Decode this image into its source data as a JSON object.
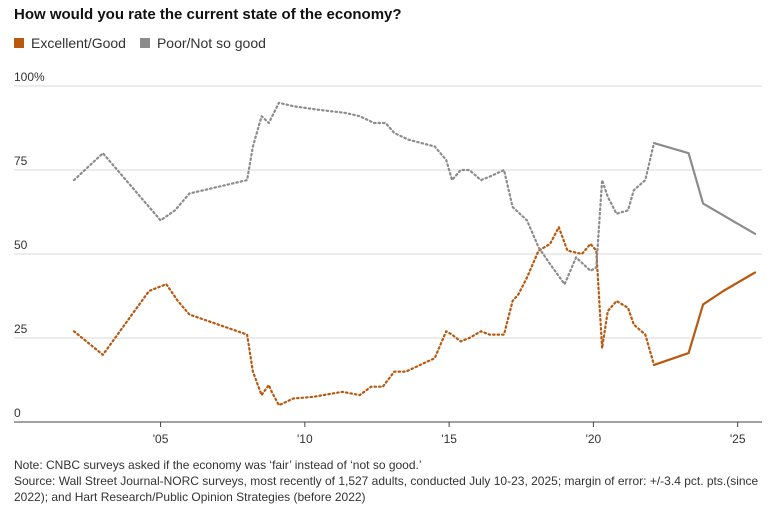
{
  "chart_data": {
    "type": "line",
    "title": "How would you rate the current state of the economy?",
    "xlabel": "",
    "ylabel": "",
    "x_tick_labels": [
      "'05",
      "'10",
      "'15",
      "'20",
      "'25"
    ],
    "x_tick_values": [
      2005,
      2010,
      2015,
      2020,
      2025
    ],
    "y_tick_labels": [
      "100%",
      "75",
      "50",
      "25",
      "0"
    ],
    "y_tick_values": [
      100,
      75,
      50,
      25,
      0
    ],
    "xlim": [
      2001.3,
      2025.8
    ],
    "ylim": [
      0,
      100
    ],
    "legend_position": "top-left",
    "note_line_styles": "dotted = Hart Research/Public Opinion Strategies (before 2022); solid = Wall Street Journal-NORC (since 2022)",
    "series": [
      {
        "name": "Excellent/Good",
        "color": "#b8590f",
        "dotted": {
          "x": [
            2002.0,
            2003.0,
            2004.6,
            2005.2,
            2005.6,
            2006.0,
            2008.0,
            2008.2,
            2008.5,
            2008.75,
            2008.85,
            2009.1,
            2009.6,
            2010.3,
            2011.3,
            2011.9,
            2012.3,
            2012.7,
            2013.1,
            2013.5,
            2014.5,
            2014.9,
            2015.1,
            2015.4,
            2015.7,
            2016.1,
            2016.4,
            2016.9,
            2017.2,
            2017.4,
            2017.7,
            2018.1,
            2018.5,
            2018.8,
            2019.1,
            2019.6,
            2019.9,
            2020.1,
            2020.3,
            2020.5,
            2020.8,
            2021.2,
            2021.4,
            2021.8,
            2022.1
          ],
          "y": [
            27,
            20,
            39,
            41,
            36,
            32,
            26,
            15,
            8,
            11,
            9,
            5,
            7,
            7.5,
            9,
            8,
            10.5,
            10.5,
            15,
            15,
            19,
            27,
            26,
            24,
            25,
            27,
            26,
            26,
            36,
            38,
            43,
            51,
            53,
            58,
            51,
            50,
            53,
            51,
            22,
            33,
            36,
            34,
            29,
            26,
            17
          ]
        },
        "solid": {
          "x": [
            2022.1,
            2023.3,
            2023.8,
            2024.5,
            2025.6
          ],
          "y": [
            17,
            20.5,
            35,
            39,
            44.5
          ]
        }
      },
      {
        "name": "Poor/Not so good",
        "color": "#8c8c8c",
        "dotted": {
          "x": [
            2002.0,
            2003.0,
            2005.0,
            2005.5,
            2006.0,
            2008.0,
            2008.2,
            2008.5,
            2008.75,
            2009.1,
            2009.6,
            2010.4,
            2011.4,
            2011.9,
            2012.4,
            2012.8,
            2013.1,
            2013.6,
            2014.5,
            2014.9,
            2015.1,
            2015.4,
            2015.7,
            2016.1,
            2016.4,
            2016.9,
            2017.2,
            2017.7,
            2018.1,
            2018.5,
            2019.0,
            2019.4,
            2019.9,
            2020.1,
            2020.3,
            2020.5,
            2020.8,
            2021.2,
            2021.4,
            2021.8,
            2022.1
          ],
          "y": [
            72,
            80,
            60,
            63,
            68,
            72,
            82,
            91,
            89,
            95,
            94,
            93,
            92,
            91,
            89,
            89,
            86,
            84,
            82,
            78,
            72,
            75,
            75,
            72,
            73,
            75,
            64,
            60,
            52,
            47,
            41,
            49,
            45,
            46,
            72,
            67,
            62,
            63,
            69,
            72,
            83
          ]
        },
        "solid": {
          "x": [
            2022.1,
            2023.3,
            2023.8,
            2025.6
          ],
          "y": [
            83,
            80,
            65,
            56
          ]
        }
      }
    ]
  },
  "notes": {
    "line1": "Note: CNBC surveys asked if the economy was ‘fair’ instead of ‘not so good.’",
    "line2": "Source: Wall Street Journal-NORC surveys, most recently of 1,527 adults, conducted July 10-23, 2025; margin of error: +/-3.4 pct. pts.(since 2022); and Hart Research/Public Opinion Strategies (before 2022)"
  }
}
